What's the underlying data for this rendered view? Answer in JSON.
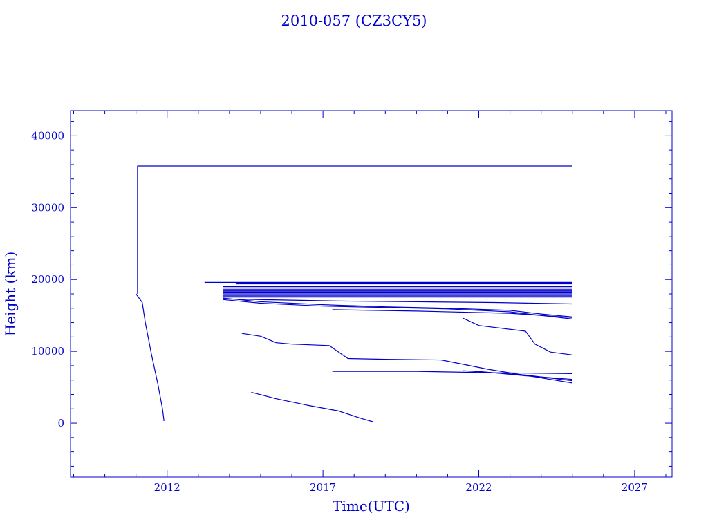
{
  "chart_data": {
    "type": "line",
    "title": "2010-057 (CZ3CY5)",
    "xlabel": "Time(UTC)",
    "ylabel": "Height (km)",
    "xlim": [
      2008.9,
      2028.2
    ],
    "ylim": [
      -7500,
      43500
    ],
    "x_major_ticks": [
      2012,
      2017,
      2022,
      2027
    ],
    "x_minor_step": 1,
    "y_major_ticks": [
      0,
      10000,
      20000,
      30000,
      40000
    ],
    "y_minor_step": 2000,
    "x_tick_labels": [
      "2012",
      "2017",
      "2022",
      "2027"
    ],
    "y_tick_labels": [
      "0",
      "10000",
      "20000",
      "30000",
      "40000"
    ],
    "grid": false,
    "legend": "none",
    "color": "#0000cc",
    "series": [
      {
        "x": [
          2011.05,
          2011.05,
          2011.05,
          2014.5,
          2020,
          2025.0
        ],
        "y": [
          18000,
          35700,
          35800,
          35800,
          35800,
          35800
        ]
      },
      {
        "x": [
          2011.0,
          2011.2,
          2011.3,
          2011.5,
          2011.7,
          2011.85,
          2011.9
        ],
        "y": [
          18000,
          16800,
          14000,
          9500,
          5500,
          2000,
          300
        ]
      },
      {
        "x": [
          2013.2,
          2025.0
        ],
        "y": [
          19600,
          19600
        ]
      },
      {
        "x": [
          2014.2,
          2025.0
        ],
        "y": [
          19400,
          19400
        ]
      },
      {
        "x": [
          2013.8,
          2025.0
        ],
        "y": [
          19000,
          19000
        ]
      },
      {
        "x": [
          2013.8,
          2025.0
        ],
        "y": [
          18800,
          18800
        ]
      },
      {
        "x": [
          2013.8,
          2025.0
        ],
        "y": [
          18600,
          18600
        ]
      },
      {
        "x": [
          2013.8,
          2025.0
        ],
        "y": [
          18450,
          18450
        ]
      },
      {
        "x": [
          2013.8,
          2025.0
        ],
        "y": [
          18300,
          18300
        ]
      },
      {
        "x": [
          2013.8,
          2025.0
        ],
        "y": [
          18150,
          18150
        ]
      },
      {
        "x": [
          2013.8,
          2025.0
        ],
        "y": [
          18000,
          18000
        ]
      },
      {
        "x": [
          2013.8,
          2025.0
        ],
        "y": [
          17850,
          17850
        ]
      },
      {
        "x": [
          2013.8,
          2025.0
        ],
        "y": [
          17700,
          17700
        ]
      },
      {
        "x": [
          2013.8,
          2025.0
        ],
        "y": [
          17550,
          17550
        ]
      },
      {
        "x": [
          2013.8,
          2017.5,
          2020,
          2022.5,
          2025.0
        ],
        "y": [
          17300,
          17000,
          16900,
          16800,
          16600
        ]
      },
      {
        "x": [
          2013.8,
          2015,
          2017,
          2019,
          2021,
          2023,
          2024,
          2025.0
        ],
        "y": [
          17400,
          16900,
          16500,
          16200,
          16000,
          15700,
          15200,
          14800
        ]
      },
      {
        "x": [
          2013.8,
          2015,
          2017,
          2019,
          2021,
          2023,
          2024,
          2025.0
        ],
        "y": [
          17200,
          16700,
          16300,
          16100,
          15900,
          15500,
          15000,
          14500
        ]
      },
      {
        "x": [
          2017.3,
          2020,
          2023,
          2025.0
        ],
        "y": [
          15800,
          15600,
          15300,
          14700
        ]
      },
      {
        "x": [
          2021.5,
          2022,
          2023.5,
          2023.8,
          2024.3,
          2025.0
        ],
        "y": [
          14600,
          13600,
          12800,
          11000,
          9900,
          9500
        ]
      },
      {
        "x": [
          2014.4,
          2015,
          2015.5,
          2016,
          2017.2,
          2017.8,
          2019,
          2020.8,
          2022.3,
          2025.0
        ],
        "y": [
          12500,
          12100,
          11200,
          11000,
          10800,
          9000,
          8900,
          8800,
          7500,
          5600
        ]
      },
      {
        "x": [
          2017.3,
          2020,
          2022.8,
          2025.0
        ],
        "y": [
          7200,
          7200,
          7000,
          6900
        ]
      },
      {
        "x": [
          2022.0,
          2023.5,
          2025.0
        ],
        "y": [
          7200,
          6600,
          6100
        ]
      },
      {
        "x": [
          2021.5,
          2023.5,
          2025.0
        ],
        "y": [
          7300,
          6700,
          5900
        ]
      },
      {
        "x": [
          2014.7,
          2015.5,
          2016.5,
          2017.5,
          2018.2,
          2018.6
        ],
        "y": [
          4300,
          3400,
          2500,
          1700,
          700,
          200
        ]
      }
    ]
  }
}
